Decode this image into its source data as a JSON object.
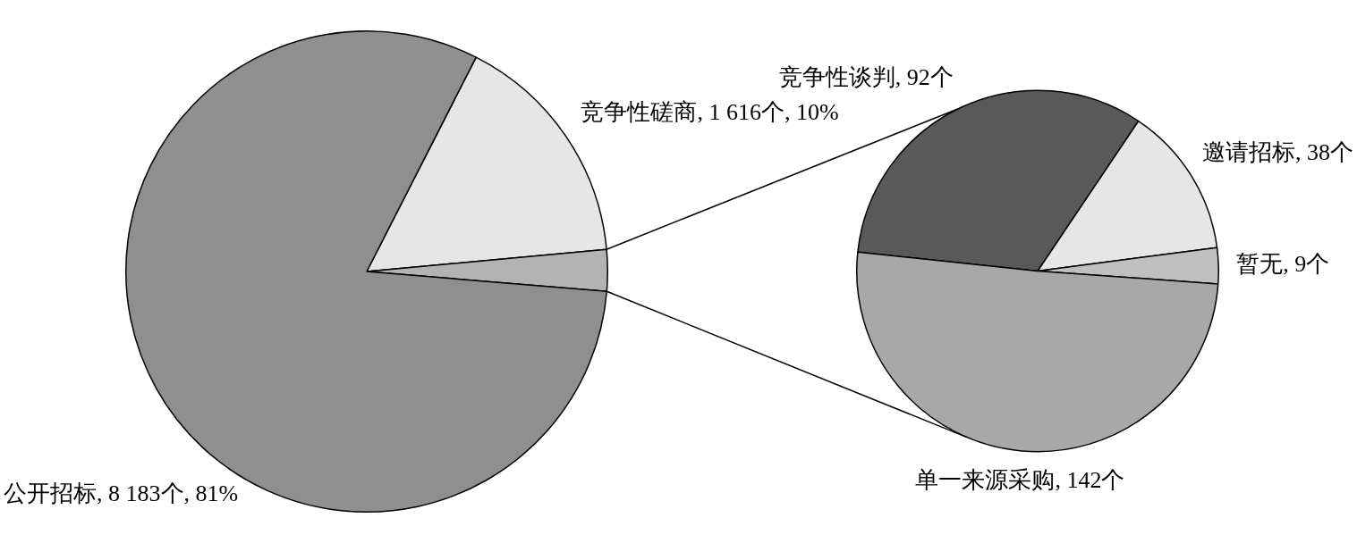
{
  "chart_data": [
    {
      "type": "pie",
      "categories": [
        "竞争性磋商",
        null,
        "公开招标"
      ],
      "values": [
        1616,
        281,
        8183
      ],
      "value_labels": [
        "1 616个, 10%",
        null,
        "8 183个, 81%"
      ],
      "colors": [
        "#e6e6e6",
        "#b3b3b3",
        "#8f8f8f"
      ],
      "legend": false
    },
    {
      "type": "pie",
      "categories": [
        "竞争性谈判",
        "邀请招标",
        "暂无",
        "单一来源采购"
      ],
      "values": [
        92,
        38,
        9,
        142
      ],
      "value_labels": [
        "92个",
        "38个",
        "9个",
        "142个"
      ],
      "colors": [
        "#595959",
        "#e6e6e6",
        "#bfbfbf",
        "#a8a8a8"
      ],
      "legend": false
    }
  ]
}
